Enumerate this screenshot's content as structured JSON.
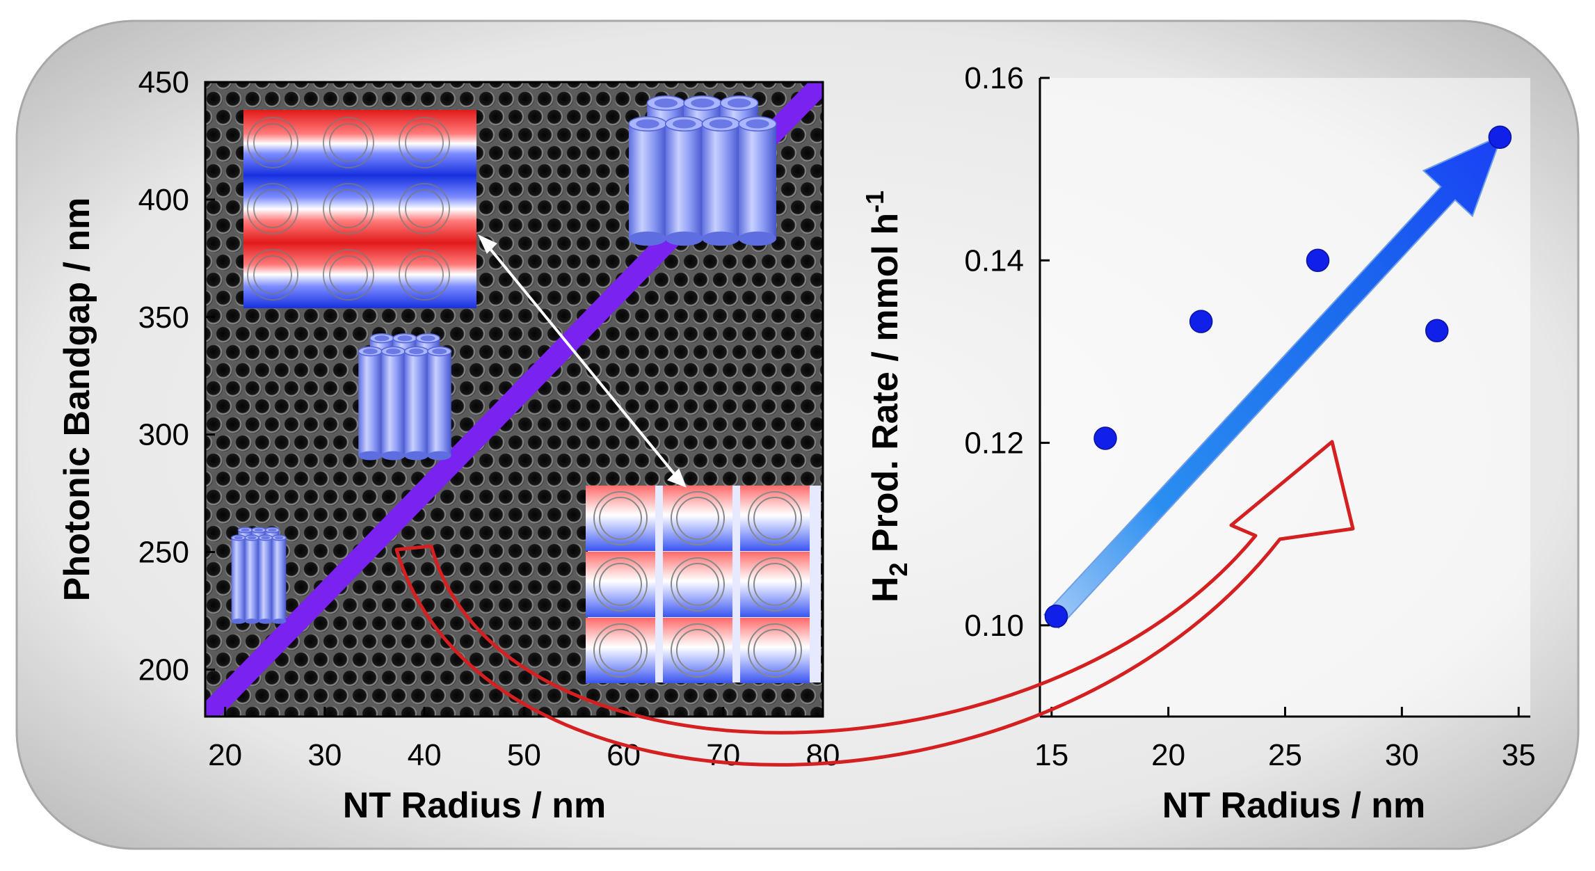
{
  "chart_data": [
    {
      "type": "line",
      "xlabel": "NT Radius / nm",
      "ylabel": "Photonic Bandgap / nm",
      "xlim": [
        18,
        80
      ],
      "ylim": [
        180,
        450
      ],
      "xticks": [
        20,
        30,
        40,
        50,
        60,
        70,
        80
      ],
      "yticks": [
        200,
        250,
        300,
        350,
        400,
        450
      ],
      "series": [
        {
          "x": [
            18,
            80
          ],
          "y": [
            180,
            450
          ],
          "color": "#7a22f0"
        }
      ],
      "background": "SEM image of nanotube array",
      "insets": [
        "field-map-top",
        "field-map-bottom",
        "nanotube-bundle-small",
        "nanotube-bundle-medium",
        "nanotube-bundle-large"
      ]
    },
    {
      "type": "scatter",
      "xlabel": "NT Radius / nm",
      "ylabel_main": "H",
      "ylabel_sub": "2",
      "ylabel_rest": " Prod. Rate / mmol h",
      "ylabel_sup": "-1",
      "xlim": [
        14.5,
        35.5
      ],
      "ylim": [
        0.09,
        0.16
      ],
      "xticks": [
        15,
        20,
        25,
        30,
        35
      ],
      "yticks": [
        "0.10",
        "0.12",
        "0.14",
        "0.16"
      ],
      "points": [
        {
          "x": 15.2,
          "y": 0.101
        },
        {
          "x": 17.3,
          "y": 0.1205
        },
        {
          "x": 21.4,
          "y": 0.1333
        },
        {
          "x": 26.4,
          "y": 0.14
        },
        {
          "x": 31.5,
          "y": 0.1323
        },
        {
          "x": 34.2,
          "y": 0.1535
        }
      ],
      "marker_color": "#1020e8",
      "trend_arrow_color": "#1e6ff0"
    }
  ],
  "colors": {
    "frame": "#c9c9c9",
    "connector_arrow": "#d42020",
    "double_arrow": "#ffffff"
  }
}
